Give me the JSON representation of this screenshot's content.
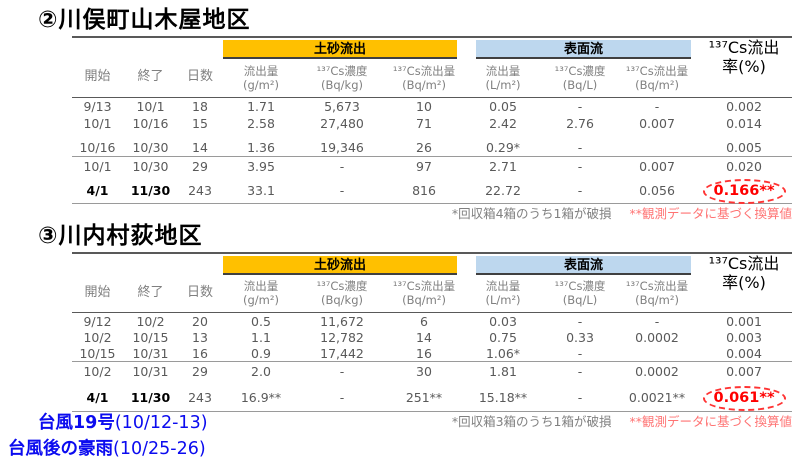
{
  "colors": {
    "sediment_band": "#FFC000",
    "surface_band": "#BDD7EE",
    "highlight_red": "#FF0000",
    "note_red": "#FF7373",
    "legend_blue": "#0B0BEF"
  },
  "tables": [
    {
      "title": "②川俣町山木屋地区",
      "group1": "土砂流出",
      "group2": "表面流",
      "rate_line1": "¹³⁷Cs流出",
      "rate_line2": "率(%)",
      "col_start": "開始",
      "col_end": "終了",
      "col_days": "日数",
      "sub_headers": [
        {
          "label": "流出量",
          "unit": "(g/m²)"
        },
        {
          "label": "¹³⁷Cs濃度",
          "unit": "(Bq/kg)"
        },
        {
          "label": "¹³⁷Cs流出量",
          "unit": "(Bq/m²)"
        },
        {
          "label": "流出量",
          "unit": "(L/m²)"
        },
        {
          "label": "¹³⁷Cs濃度",
          "unit": "(Bq/L)"
        },
        {
          "label": "¹³⁷Cs流出量",
          "unit": "(Bq/m²)"
        }
      ],
      "rows": [
        [
          "9/13",
          "10/1",
          "18",
          "1.71",
          "5,673",
          "10",
          "0.05",
          "-",
          "-",
          "0.002"
        ],
        [
          "10/1",
          "10/16",
          "15",
          "2.58",
          "27,480",
          "71",
          "2.42",
          "2.76",
          "0.007",
          "0.014"
        ],
        [
          "10/16",
          "10/30",
          "14",
          "1.36",
          "19,346",
          "26",
          "0.29*",
          "-",
          "",
          "0.005"
        ],
        [
          "10/1",
          "10/30",
          "29",
          "3.95",
          "-",
          "97",
          "2.71",
          "-",
          "0.007",
          "0.020"
        ],
        [
          "4/1",
          "11/30",
          "243",
          "33.1",
          "-",
          "816",
          "22.72",
          "-",
          "0.056",
          "0.166**"
        ]
      ],
      "footnote": {
        "damaged": "*回収箱4箱のうち1箱が破損",
        "converted": "**観測データに基づく換算値"
      }
    },
    {
      "title": "③川内村荻地区",
      "group1": "土砂流出",
      "group2": "表面流",
      "rate_line1": "¹³⁷Cs流出",
      "rate_line2": "率(%)",
      "col_start": "開始",
      "col_end": "終了",
      "col_days": "日数",
      "sub_headers": [
        {
          "label": "流出量",
          "unit": "(g/m²)"
        },
        {
          "label": "¹³⁷Cs濃度",
          "unit": "(Bq/kg)"
        },
        {
          "label": "¹³⁷Cs流出量",
          "unit": "(Bq/m²)"
        },
        {
          "label": "流出量",
          "unit": "(L/m²)"
        },
        {
          "label": "¹³⁷Cs濃度",
          "unit": "(Bq/L)"
        },
        {
          "label": "¹³⁷Cs流出量",
          "unit": "(Bq/m²)"
        }
      ],
      "rows": [
        [
          "9/12",
          "10/2",
          "20",
          "0.5",
          "11,672",
          "6",
          "0.03",
          "-",
          "-",
          "0.001"
        ],
        [
          "10/2",
          "10/15",
          "13",
          "1.1",
          "12,782",
          "14",
          "0.75",
          "0.33",
          "0.0002",
          "0.003"
        ],
        [
          "10/15",
          "10/31",
          "16",
          "0.9",
          "17,442",
          "16",
          "1.06*",
          "-",
          "",
          "0.004"
        ],
        [
          "10/2",
          "10/31",
          "29",
          "2.0",
          "-",
          "30",
          "1.81",
          "-",
          "0.0002",
          "0.007"
        ],
        [
          "4/1",
          "11/30",
          "243",
          "16.9**",
          "-",
          "251**",
          "15.18**",
          "-",
          "0.0021**",
          "0.061**"
        ]
      ],
      "footnote": {
        "damaged": "*回収箱3箱のうち1箱が破損",
        "converted": "**観測データに基づく換算値"
      }
    }
  ],
  "legend": {
    "line1_bold": "台風19号",
    "line1_rest": "(10/12-13)",
    "line2_bold": "台風後の豪雨",
    "line2_rest": "(10/25-26)"
  }
}
